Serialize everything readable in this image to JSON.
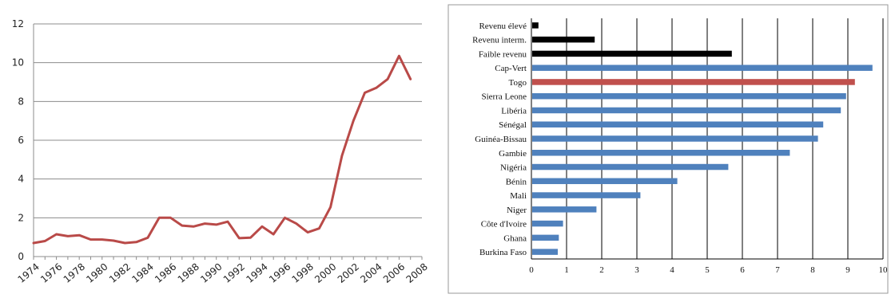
{
  "chart_data": [
    {
      "type": "line",
      "title": "",
      "xlabel": "",
      "ylabel": "",
      "x_tick_labels": [
        "1974",
        "1976",
        "1978",
        "1980",
        "1982",
        "1984",
        "1986",
        "1988",
        "1990",
        "1992",
        "1994",
        "1996",
        "1998",
        "2000",
        "2002",
        "2004",
        "2006",
        "2008"
      ],
      "y_tick_labels": [
        "0",
        "2",
        "4",
        "6",
        "8",
        "10",
        "12"
      ],
      "xlim": [
        1974,
        2008
      ],
      "ylim": [
        0,
        12
      ],
      "grid": "horizontal",
      "series": [
        {
          "color": "#b94a48",
          "x": [
            1974,
            1975,
            1976,
            1977,
            1978,
            1979,
            1980,
            1981,
            1982,
            1983,
            1984,
            1985,
            1986,
            1987,
            1988,
            1989,
            1990,
            1991,
            1992,
            1993,
            1994,
            1995,
            1996,
            1997,
            1998,
            1999,
            2000,
            2001,
            2002,
            2003,
            2004,
            2005,
            2006,
            2007
          ],
          "y": [
            0.7,
            0.8,
            1.15,
            1.05,
            1.1,
            0.88,
            0.88,
            0.82,
            0.7,
            0.75,
            0.97,
            2.0,
            2.0,
            1.6,
            1.55,
            1.7,
            1.65,
            1.8,
            0.95,
            0.98,
            1.55,
            1.15,
            2.0,
            1.7,
            1.25,
            1.45,
            2.55,
            5.2,
            7.0,
            8.45,
            8.7,
            9.15,
            10.35,
            9.15
          ]
        }
      ]
    },
    {
      "type": "bar",
      "orientation": "horizontal",
      "title": "",
      "xlabel": "",
      "ylabel": "",
      "categories": [
        "Revenu élevé",
        "Revenu interm.",
        "Faible revenu",
        "Cap-Vert",
        "Togo",
        "Sierra Leone",
        "Libéria",
        "Sénégal",
        "Guinéa-Bissau",
        "Gambie",
        "Nigéria",
        "Bénin",
        "Mali",
        "Niger",
        "Côte d'Ivoire",
        "Ghana",
        "Burkina Faso"
      ],
      "values": [
        0.2,
        1.8,
        5.7,
        9.7,
        9.2,
        8.95,
        8.8,
        8.3,
        8.15,
        7.35,
        5.6,
        4.15,
        3.1,
        1.85,
        0.9,
        0.78,
        0.75
      ],
      "colors": [
        "#000000",
        "#000000",
        "#000000",
        "#4f81bd",
        "#c0504d",
        "#4f81bd",
        "#4f81bd",
        "#4f81bd",
        "#4f81bd",
        "#4f81bd",
        "#4f81bd",
        "#4f81bd",
        "#4f81bd",
        "#4f81bd",
        "#4f81bd",
        "#4f81bd",
        "#4f81bd"
      ],
      "x_tick_labels": [
        "0",
        "1",
        "2",
        "3",
        "4",
        "5",
        "6",
        "7",
        "8",
        "9",
        "10"
      ],
      "xlim": [
        0,
        10
      ],
      "grid": "vertical"
    }
  ]
}
